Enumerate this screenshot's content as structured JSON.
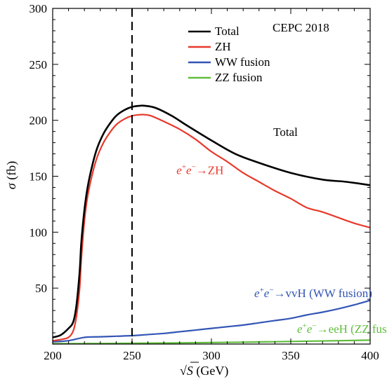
{
  "chart_data": {
    "type": "line",
    "title": "CEPC 2018",
    "xlabel": "√S (GeV)",
    "xlabel_parts": {
      "root": "√",
      "var": "S",
      "unit": " (GeV)"
    },
    "ylabel": "σ (fb)",
    "ylabel_parts": {
      "var": "σ",
      "unit": " (fb)"
    },
    "xlim": [
      200,
      400
    ],
    "ylim": [
      0,
      300
    ],
    "xticks": [
      200,
      250,
      300,
      350,
      400
    ],
    "yticks": [
      50,
      100,
      150,
      200,
      250,
      300
    ],
    "vline_x": 250,
    "grid": false,
    "legend_position": "top-right",
    "series": [
      {
        "name": "Total",
        "color": "#000000",
        "x": [
          200,
          205,
          210,
          213,
          215,
          217,
          218,
          220,
          222,
          225,
          228,
          232,
          236,
          240,
          245,
          250,
          255,
          258,
          265,
          275,
          285,
          300,
          315,
          330,
          350,
          370,
          385,
          400
        ],
        "y": [
          6,
          8,
          14,
          20,
          35,
          65,
          90,
          120,
          140,
          160,
          175,
          188,
          197,
          204,
          209,
          212,
          213,
          213,
          211,
          204,
          195,
          182,
          170,
          162,
          153,
          147,
          145,
          142
        ]
      },
      {
        "name": "ZH",
        "color": "#e8392b",
        "x": [
          200,
          205,
          210,
          213,
          215,
          217,
          218,
          220,
          222,
          225,
          228,
          232,
          236,
          240,
          245,
          250,
          255,
          258,
          262,
          270,
          280,
          290,
          300,
          310,
          320,
          330,
          340,
          350,
          360,
          370,
          380,
          390,
          400
        ],
        "y": [
          3,
          4,
          6,
          12,
          25,
          50,
          75,
          110,
          132,
          152,
          167,
          180,
          189,
          196,
          201,
          204,
          205,
          205,
          204,
          199,
          192,
          183,
          172,
          163,
          153,
          145,
          137,
          130,
          122,
          118,
          113,
          108,
          104
        ]
      },
      {
        "name": "WW fusion",
        "color": "#3355b5",
        "x": [
          200,
          210,
          220,
          230,
          240,
          250,
          260,
          270,
          280,
          290,
          300,
          310,
          320,
          330,
          340,
          350,
          360,
          370,
          380,
          390,
          400
        ],
        "y": [
          2,
          3,
          6,
          6.5,
          7,
          7.5,
          8.5,
          9.5,
          11,
          12.5,
          14,
          15.5,
          17,
          19,
          21,
          23,
          26,
          28.5,
          31.5,
          35,
          39
        ]
      },
      {
        "name": "ZZ fusion",
        "color": "#5fbe3c",
        "x": [
          200,
          230,
          260,
          290,
          320,
          350,
          380,
          400
        ],
        "y": [
          0.3,
          0.5,
          0.8,
          1.2,
          1.7,
          2.3,
          3,
          3.5
        ]
      }
    ],
    "annotations": [
      {
        "id": "total",
        "text": "Total",
        "color": "#000000",
        "x": 339,
        "y": 186
      },
      {
        "id": "zh",
        "e1": "e",
        "sup1": "+",
        "e2": "e",
        "sup2": "−",
        "rest": "→ZH",
        "color": "#e8392b",
        "x": 278,
        "y": 152
      },
      {
        "id": "ww",
        "e1": "e",
        "sup1": "+",
        "e2": "e",
        "sup2": "−",
        "rest": "→vvH (WW fusion)",
        "color": "#3355b5",
        "x": 327,
        "y": 42
      },
      {
        "id": "zz",
        "e1": "e",
        "sup1": "+",
        "e2": "e",
        "sup2": "−",
        "rest": "→eeH (ZZ fusion)",
        "color": "#5fbe3c",
        "x": 354,
        "y": 10
      }
    ]
  }
}
